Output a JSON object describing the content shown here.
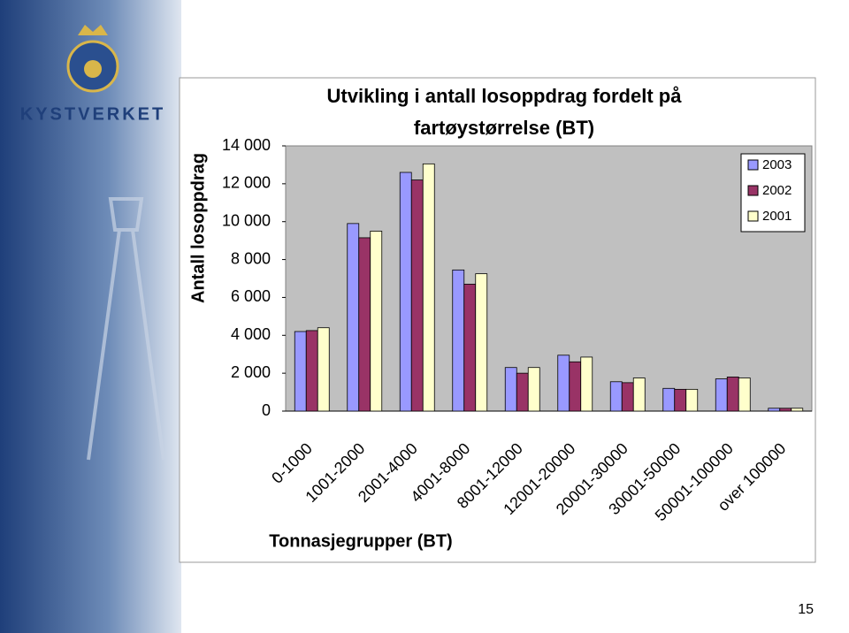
{
  "page": {
    "logo": "KYSTVERKET",
    "number": "15"
  },
  "chart_data": {
    "type": "bar",
    "title": "Utvikling i antall losoppdrag fordelt på",
    "subtitle": "fartøystørrelse (BT)",
    "y_label": "Antall losoppdrag",
    "x_label": "Tonnasjegrupper (BT)",
    "categories": [
      "0-1000",
      "1001-2000",
      "2001-4000",
      "4001-8000",
      "8001-12000",
      "12001-20000",
      "20001-30000",
      "30001-50000",
      "50001-100000",
      "over 100000"
    ],
    "series": [
      {
        "name": "2003",
        "color": "#9999ff",
        "values": [
          4200,
          9900,
          12600,
          7450,
          2300,
          2950,
          1550,
          1200,
          1700,
          150
        ]
      },
      {
        "name": "2002",
        "color": "#993366",
        "values": [
          4250,
          9150,
          12200,
          6700,
          2000,
          2600,
          1500,
          1150,
          1800,
          150
        ]
      },
      {
        "name": "2001",
        "color": "#ffffcc",
        "values": [
          4400,
          9500,
          13050,
          7250,
          2300,
          2850,
          1750,
          1150,
          1750,
          150
        ]
      }
    ],
    "ylim": [
      0,
      14000
    ],
    "yticks": [
      0,
      {
        "value": 2000,
        "label": "2 000"
      },
      {
        "value": 4000,
        "label": "4 000"
      },
      {
        "value": 6000,
        "label": "6 000"
      },
      {
        "value": 8000,
        "label": "8 000"
      },
      {
        "value": 10000,
        "label": "10 000"
      },
      {
        "value": 12000,
        "label": "12 000"
      },
      {
        "value": 14000,
        "label": "14 000"
      }
    ],
    "legend": "top-right"
  }
}
